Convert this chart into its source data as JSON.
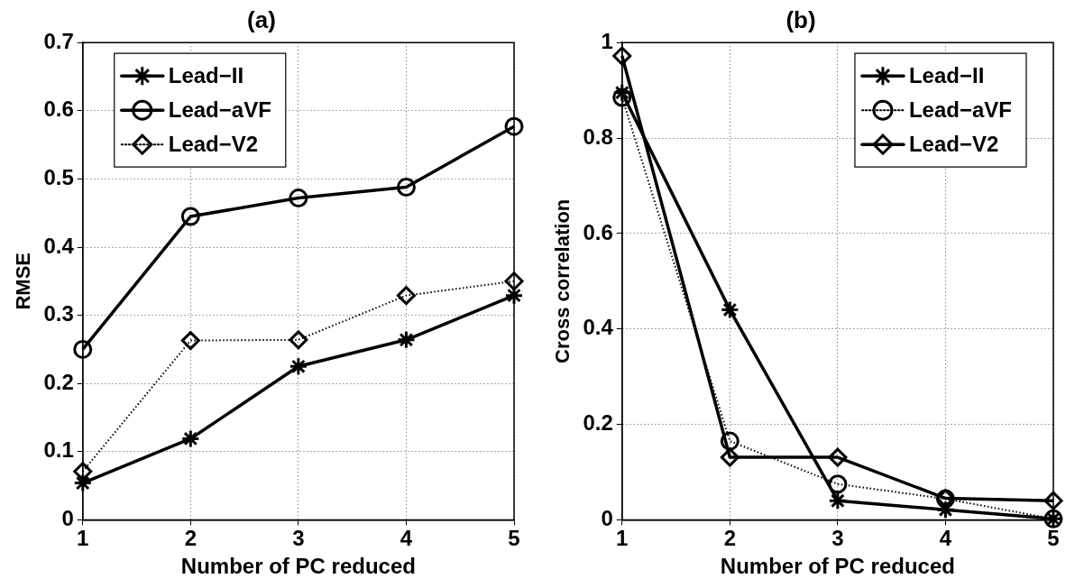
{
  "chart_data": [
    {
      "type": "line",
      "title": "(a)",
      "xlabel": "Number of PC reduced",
      "ylabel": "RMSE",
      "x": [
        1,
        2,
        3,
        4,
        5
      ],
      "xlim": [
        1,
        5
      ],
      "xticks": [
        1,
        2,
        3,
        4,
        5
      ],
      "ylim": [
        0,
        0.7
      ],
      "yticks": [
        0,
        0.1,
        0.2,
        0.3,
        0.4,
        0.5,
        0.6,
        0.7
      ],
      "grid": true,
      "legend": "top left",
      "series": [
        {
          "name": "Lead−II",
          "color": "#000000",
          "marker": "cross",
          "line_style": "solid",
          "values": [
            0.054,
            0.119,
            0.225,
            0.264,
            0.329
          ]
        },
        {
          "name": "Lead−aVF",
          "color": "#000000",
          "marker": "circle",
          "line_style": "solid",
          "values": [
            0.25,
            0.445,
            0.472,
            0.488,
            0.577
          ]
        },
        {
          "name": "Lead−V2",
          "color": "#000000",
          "marker": "diamond",
          "line_style": "dotted",
          "values": [
            0.071,
            0.263,
            0.264,
            0.329,
            0.35
          ]
        }
      ]
    },
    {
      "type": "line",
      "title": "(b)",
      "xlabel": "Number of PC reduced",
      "ylabel": "Cross correlation",
      "x": [
        1,
        2,
        3,
        4,
        5
      ],
      "xlim": [
        1,
        5
      ],
      "xticks": [
        1,
        2,
        3,
        4,
        5
      ],
      "ylim": [
        0,
        1
      ],
      "yticks": [
        0,
        0.2,
        0.4,
        0.6,
        0.8,
        1
      ],
      "grid": true,
      "legend": "top right",
      "series": [
        {
          "name": "Lead−II",
          "color": "#000000",
          "marker": "cross",
          "line_style": "solid",
          "values": [
            0.895,
            0.44,
            0.04,
            0.021,
            0.002
          ]
        },
        {
          "name": "Lead−aVF",
          "color": "#000000",
          "marker": "circle",
          "line_style": "dotted",
          "values": [
            0.885,
            0.165,
            0.075,
            0.044,
            0.002
          ]
        },
        {
          "name": "Lead−V2",
          "color": "#000000",
          "marker": "diamond",
          "line_style": "solid",
          "values": [
            0.972,
            0.131,
            0.131,
            0.045,
            0.04
          ]
        }
      ]
    }
  ]
}
